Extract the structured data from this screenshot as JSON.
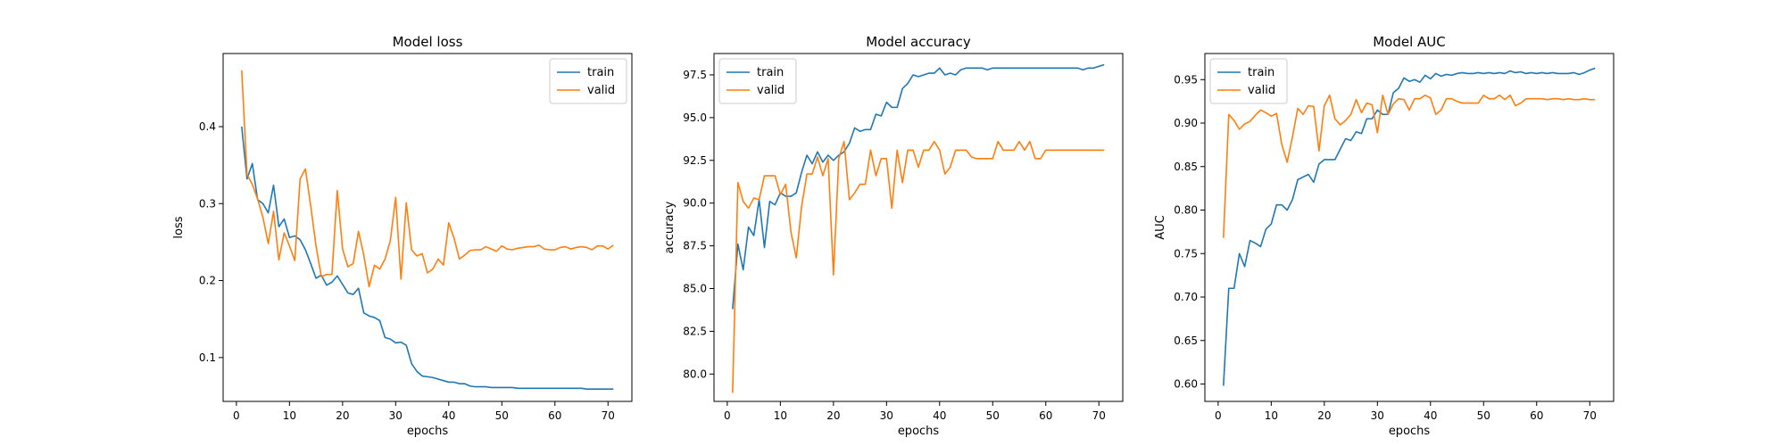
{
  "chart_data": [
    {
      "type": "line",
      "title": "Model loss",
      "xlabel": "epochs",
      "ylabel": "loss",
      "xlim": [
        -2.5,
        74.5
      ],
      "ylim": [
        0.043,
        0.495
      ],
      "xticks": [
        0,
        10,
        20,
        30,
        40,
        50,
        60,
        70
      ],
      "yticks": [
        0.1,
        0.2,
        0.3,
        0.4
      ],
      "ytick_labels": [
        "0.1",
        "0.2",
        "0.3",
        "0.4"
      ],
      "legend": "top-right",
      "x": [
        1,
        2,
        3,
        4,
        5,
        6,
        7,
        8,
        9,
        10,
        11,
        12,
        13,
        14,
        15,
        16,
        17,
        18,
        19,
        20,
        21,
        22,
        23,
        24,
        25,
        26,
        27,
        28,
        29,
        30,
        31,
        32,
        33,
        34,
        35,
        36,
        37,
        38,
        39,
        40,
        41,
        42,
        43,
        44,
        45,
        46,
        47,
        48,
        49,
        50,
        51,
        52,
        53,
        54,
        55,
        56,
        57,
        58,
        59,
        60,
        61,
        62,
        63,
        64,
        65,
        66,
        67,
        68,
        69,
        70,
        71
      ],
      "series": [
        {
          "name": "train",
          "color": "#1f77b4",
          "values": [
            0.4,
            0.332,
            0.352,
            0.305,
            0.3,
            0.288,
            0.324,
            0.27,
            0.28,
            0.256,
            0.258,
            0.253,
            0.24,
            0.222,
            0.203,
            0.207,
            0.194,
            0.198,
            0.206,
            0.195,
            0.184,
            0.182,
            0.19,
            0.158,
            0.154,
            0.152,
            0.148,
            0.126,
            0.124,
            0.119,
            0.12,
            0.116,
            0.092,
            0.082,
            0.076,
            0.075,
            0.074,
            0.072,
            0.07,
            0.068,
            0.068,
            0.066,
            0.066,
            0.063,
            0.062,
            0.062,
            0.062,
            0.061,
            0.061,
            0.061,
            0.061,
            0.061,
            0.06,
            0.06,
            0.06,
            0.06,
            0.06,
            0.06,
            0.06,
            0.06,
            0.06,
            0.06,
            0.06,
            0.06,
            0.06,
            0.059,
            0.059,
            0.059,
            0.059,
            0.059,
            0.059
          ]
        },
        {
          "name": "valid",
          "color": "#ff7f0e",
          "values": [
            0.473,
            0.338,
            0.325,
            0.306,
            0.282,
            0.248,
            0.29,
            0.227,
            0.262,
            0.245,
            0.226,
            0.332,
            0.345,
            0.297,
            0.245,
            0.205,
            0.208,
            0.208,
            0.317,
            0.241,
            0.218,
            0.222,
            0.264,
            0.233,
            0.192,
            0.22,
            0.215,
            0.228,
            0.252,
            0.308,
            0.202,
            0.301,
            0.24,
            0.232,
            0.235,
            0.21,
            0.215,
            0.228,
            0.22,
            0.275,
            0.255,
            0.228,
            0.233,
            0.239,
            0.24,
            0.24,
            0.244,
            0.241,
            0.238,
            0.245,
            0.241,
            0.24,
            0.242,
            0.243,
            0.244,
            0.244,
            0.246,
            0.241,
            0.24,
            0.24,
            0.243,
            0.244,
            0.241,
            0.243,
            0.244,
            0.243,
            0.24,
            0.245,
            0.245,
            0.241,
            0.246
          ]
        }
      ]
    },
    {
      "type": "line",
      "title": "Model accuracy",
      "xlabel": "epochs",
      "ylabel": "accuracy",
      "xlim": [
        -2.5,
        74.5
      ],
      "ylim": [
        78.4,
        98.75
      ],
      "xticks": [
        0,
        10,
        20,
        30,
        40,
        50,
        60,
        70
      ],
      "yticks": [
        80.0,
        82.5,
        85.0,
        87.5,
        90.0,
        92.5,
        95.0,
        97.5
      ],
      "ytick_labels": [
        "80.0",
        "82.5",
        "85.0",
        "87.5",
        "90.0",
        "92.5",
        "95.0",
        "97.5"
      ],
      "legend": "top-left",
      "x": [
        1,
        2,
        3,
        4,
        5,
        6,
        7,
        8,
        9,
        10,
        11,
        12,
        13,
        14,
        15,
        16,
        17,
        18,
        19,
        20,
        21,
        22,
        23,
        24,
        25,
        26,
        27,
        28,
        29,
        30,
        31,
        32,
        33,
        34,
        35,
        36,
        37,
        38,
        39,
        40,
        41,
        42,
        43,
        44,
        45,
        46,
        47,
        48,
        49,
        50,
        51,
        52,
        53,
        54,
        55,
        56,
        57,
        58,
        59,
        60,
        61,
        62,
        63,
        64,
        65,
        66,
        67,
        68,
        69,
        70,
        71
      ],
      "series": [
        {
          "name": "train",
          "color": "#1f77b4",
          "values": [
            83.8,
            87.6,
            86.1,
            88.6,
            88.1,
            90.2,
            87.4,
            90.1,
            89.9,
            90.6,
            90.4,
            90.4,
            90.6,
            91.8,
            92.8,
            92.3,
            93.0,
            92.4,
            92.8,
            92.5,
            92.8,
            93.0,
            93.5,
            94.4,
            94.2,
            94.3,
            94.3,
            95.2,
            95.1,
            95.9,
            95.6,
            95.6,
            96.7,
            97.0,
            97.5,
            97.4,
            97.5,
            97.6,
            97.6,
            97.9,
            97.5,
            97.6,
            97.5,
            97.8,
            97.9,
            97.9,
            97.9,
            97.9,
            97.8,
            97.9,
            97.9,
            97.9,
            97.9,
            97.9,
            97.9,
            97.9,
            97.9,
            97.9,
            97.9,
            97.9,
            97.9,
            97.9,
            97.9,
            97.9,
            97.9,
            97.9,
            97.8,
            97.9,
            97.9,
            98.0,
            98.1
          ]
        },
        {
          "name": "valid",
          "color": "#ff7f0e",
          "values": [
            78.9,
            91.2,
            90.1,
            89.7,
            90.3,
            90.2,
            91.6,
            91.6,
            91.6,
            90.5,
            91.1,
            88.3,
            86.8,
            89.8,
            91.7,
            91.7,
            92.7,
            91.6,
            92.6,
            85.8,
            92.6,
            93.6,
            90.2,
            90.6,
            91.1,
            91.1,
            93.1,
            91.6,
            92.6,
            92.6,
            89.7,
            93.1,
            91.2,
            93.1,
            93.1,
            92.1,
            93.1,
            93.1,
            93.6,
            93.1,
            91.7,
            92.1,
            93.1,
            93.1,
            93.1,
            92.7,
            92.6,
            92.6,
            92.6,
            92.6,
            93.6,
            93.1,
            93.1,
            93.1,
            93.6,
            93.1,
            93.6,
            92.6,
            92.6,
            93.1,
            93.1,
            93.1,
            93.1,
            93.1,
            93.1,
            93.1,
            93.1,
            93.1,
            93.1,
            93.1,
            93.1
          ]
        }
      ]
    },
    {
      "type": "line",
      "title": "Model AUC",
      "xlabel": "epochs",
      "ylabel": "AUC",
      "xlim": [
        -2.5,
        74.5
      ],
      "ylim": [
        0.58,
        0.98
      ],
      "xticks": [
        0,
        10,
        20,
        30,
        40,
        50,
        60,
        70
      ],
      "yticks": [
        0.6,
        0.65,
        0.7,
        0.75,
        0.8,
        0.85,
        0.9,
        0.95
      ],
      "ytick_labels": [
        "0.60",
        "0.65",
        "0.70",
        "0.75",
        "0.80",
        "0.85",
        "0.90",
        "0.95"
      ],
      "legend": "top-left",
      "x": [
        1,
        2,
        3,
        4,
        5,
        6,
        7,
        8,
        9,
        10,
        11,
        12,
        13,
        14,
        15,
        16,
        17,
        18,
        19,
        20,
        21,
        22,
        23,
        24,
        25,
        26,
        27,
        28,
        29,
        30,
        31,
        32,
        33,
        34,
        35,
        36,
        37,
        38,
        39,
        40,
        41,
        42,
        43,
        44,
        45,
        46,
        47,
        48,
        49,
        50,
        51,
        52,
        53,
        54,
        55,
        56,
        57,
        58,
        59,
        60,
        61,
        62,
        63,
        64,
        65,
        66,
        67,
        68,
        69,
        70,
        71
      ],
      "series": [
        {
          "name": "train",
          "color": "#1f77b4",
          "values": [
            0.598,
            0.71,
            0.71,
            0.75,
            0.735,
            0.765,
            0.762,
            0.758,
            0.778,
            0.784,
            0.806,
            0.806,
            0.8,
            0.812,
            0.835,
            0.838,
            0.841,
            0.832,
            0.853,
            0.858,
            0.858,
            0.858,
            0.87,
            0.882,
            0.88,
            0.89,
            0.888,
            0.905,
            0.905,
            0.915,
            0.91,
            0.91,
            0.935,
            0.94,
            0.952,
            0.948,
            0.95,
            0.947,
            0.955,
            0.951,
            0.957,
            0.954,
            0.956,
            0.955,
            0.957,
            0.958,
            0.957,
            0.957,
            0.958,
            0.957,
            0.958,
            0.957,
            0.958,
            0.957,
            0.96,
            0.958,
            0.959,
            0.957,
            0.958,
            0.957,
            0.958,
            0.957,
            0.958,
            0.957,
            0.957,
            0.957,
            0.958,
            0.956,
            0.958,
            0.961,
            0.963
          ]
        },
        {
          "name": "valid",
          "color": "#ff7f0e",
          "values": [
            0.768,
            0.91,
            0.903,
            0.893,
            0.899,
            0.902,
            0.909,
            0.915,
            0.912,
            0.908,
            0.911,
            0.875,
            0.855,
            0.884,
            0.917,
            0.91,
            0.92,
            0.919,
            0.868,
            0.92,
            0.932,
            0.905,
            0.898,
            0.903,
            0.91,
            0.927,
            0.912,
            0.923,
            0.921,
            0.889,
            0.932,
            0.91,
            0.922,
            0.928,
            0.927,
            0.915,
            0.928,
            0.928,
            0.932,
            0.929,
            0.91,
            0.915,
            0.928,
            0.928,
            0.925,
            0.923,
            0.923,
            0.923,
            0.923,
            0.932,
            0.928,
            0.928,
            0.932,
            0.927,
            0.932,
            0.92,
            0.923,
            0.928,
            0.928,
            0.928,
            0.928,
            0.927,
            0.928,
            0.928,
            0.927,
            0.928,
            0.927,
            0.927,
            0.928,
            0.927,
            0.927
          ]
        }
      ]
    }
  ]
}
